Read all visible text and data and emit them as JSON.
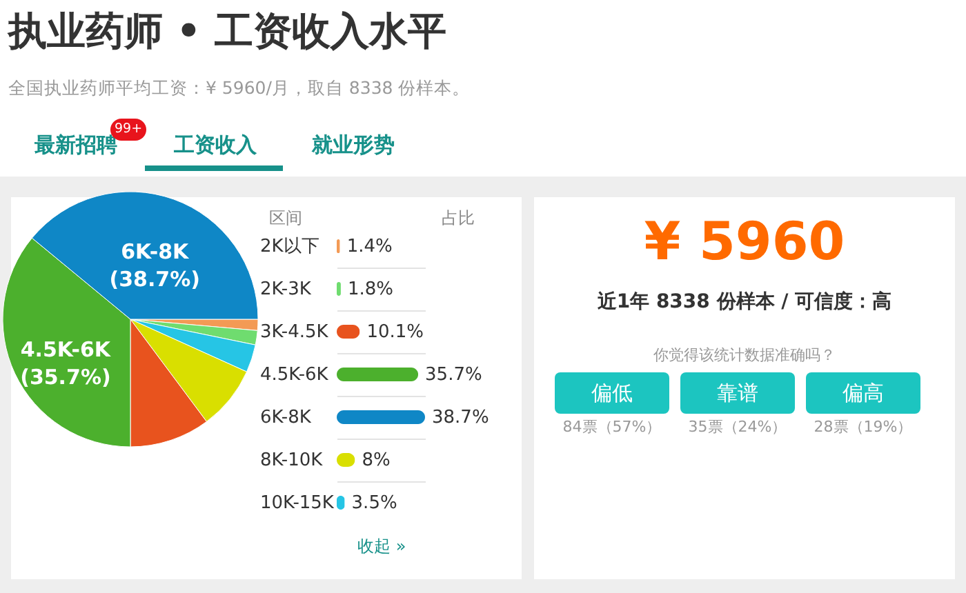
{
  "chart_data": [
    {
      "type": "pie",
      "title": "执业药师 • 工资收入水平",
      "subtitle": "全国执业药师平均工资：¥ 5960/月，取自 8338 份样本。",
      "annotations": [
        "最新招聘",
        "99+",
        "工资收入",
        "就业形势"
      ],
      "categories": [
        null,
        null,
        null,
        null,
        null,
        "4.5K-6K",
        "6K-8K"
      ],
      "values": [
        1.4,
        1.8,
        3.5,
        8,
        10.1,
        35.7,
        38.7
      ],
      "colors": [
        "#f39a55",
        "#6fdc6f",
        "#26c5e5",
        "#d9df00",
        "#e8531e",
        "#4cb02d",
        "#0f87c6"
      ],
      "value_labels": [
        null,
        null,
        null,
        null,
        null,
        "(35.7%)",
        "(38.7%)"
      ]
    },
    {
      "type": "bar",
      "orientation": "horizontal",
      "grid": "y",
      "annotations": [
        "区间",
        "占比",
        "收起 »"
      ],
      "categories": [
        "2K以下",
        "2K-3K",
        "3K-4.5K",
        "4.5K-6K",
        "6K-8K",
        "8K-10K",
        "10K-15K"
      ],
      "values": [
        1.4,
        1.8,
        10.1,
        35.7,
        38.7,
        8,
        3.5
      ],
      "colors": [
        "#f39a55",
        "#6fdc6f",
        "#e8531e",
        "#4cb02d",
        "#0f87c6",
        "#d9df00",
        "#26c5e5"
      ],
      "value_labels": [
        "1.4%",
        "1.8%",
        "10.1%",
        "35.7%",
        "38.7%",
        "8%",
        "3.5%"
      ]
    },
    {
      "type": "other",
      "title": "¥ 5960",
      "subtitle": "近1年 8338 份样本 / 可信度：高",
      "annotations": [
        "你觉得该统计数据准确吗？",
        "偏低",
        "靠谱",
        "偏高",
        "84票（57%）",
        "35票（24%）",
        "28票（19%）"
      ]
    }
  ]
}
